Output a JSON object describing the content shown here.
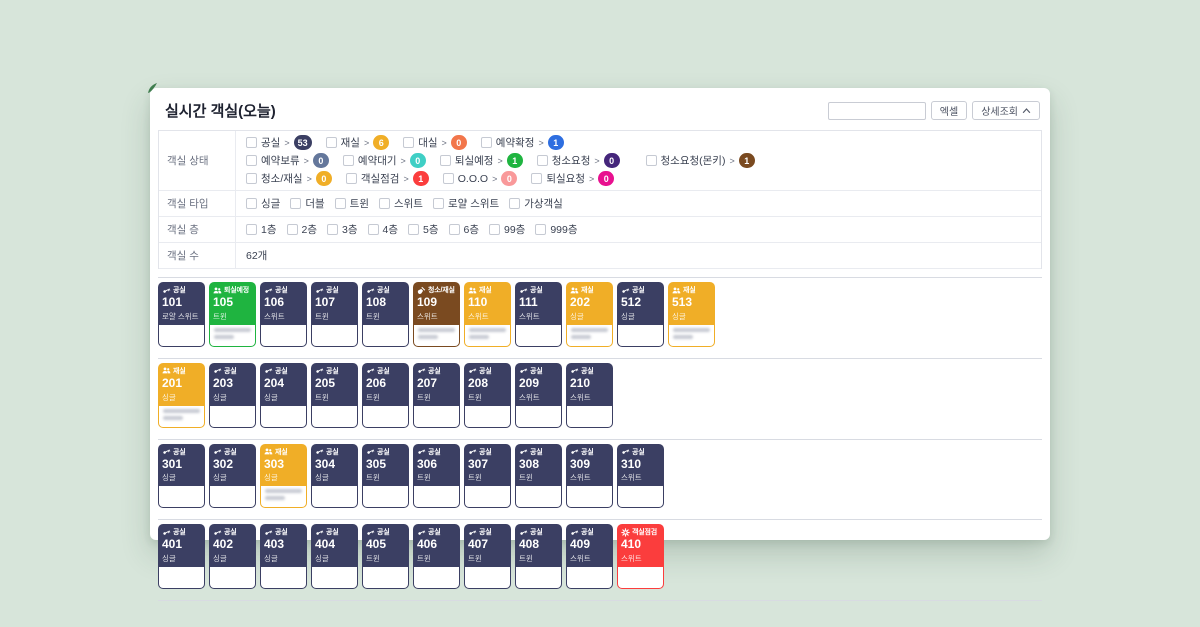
{
  "page": {
    "title": "실시간 객실(오늘)",
    "background_color": "#d7e5da"
  },
  "toolbar": {
    "search_value": "",
    "excel_label": "엑셀",
    "detail_label": "상세조회"
  },
  "filters": {
    "status_label": "객실 상태",
    "type_label": "객실 타입",
    "floor_label": "객실 층",
    "count_label": "객실 수",
    "count_value": "62개",
    "statuses_line1": [
      {
        "label": "공실",
        "count": "53",
        "color": "#3b3f63"
      },
      {
        "label": "재실",
        "count": "6",
        "color": "#f0ae27"
      },
      {
        "label": "대실",
        "count": "0",
        "color": "#f2764b"
      },
      {
        "label": "예약확정",
        "count": "1",
        "color": "#2e6ee0"
      },
      {
        "label": "예약보류",
        "count": "0",
        "color": "#64779b"
      },
      {
        "label": "예약대기",
        "count": "0",
        "color": "#3fcfc5"
      },
      {
        "label": "퇴실예정",
        "count": "1",
        "color": "#1fb440"
      },
      {
        "label": "청소요청",
        "count": "0",
        "color": "#45267b"
      },
      {
        "label": "청소/재실",
        "count": "0",
        "color": "#f0ae27"
      },
      {
        "label": "객실점검",
        "count": "1",
        "color": "#fb3d3d"
      },
      {
        "label": "O.O.O",
        "count": "0",
        "color": "#f9999a"
      },
      {
        "label": "퇴실요청",
        "count": "0",
        "color": "#e8108f"
      }
    ],
    "statuses_line2": [
      {
        "label": "청소요청(몬키)",
        "count": "1",
        "color": "#7a4a20"
      }
    ],
    "types": [
      "싱글",
      "더블",
      "트윈",
      "스위트",
      "로얄 스위트",
      "가상객실"
    ],
    "floors": [
      "1층",
      "2층",
      "3층",
      "4층",
      "5층",
      "6층",
      "99층",
      "999층"
    ]
  },
  "status_styles": {
    "vacant": {
      "label": "공실",
      "color": "#3b3f63",
      "icon": "key-icon"
    },
    "occupied": {
      "label": "재실",
      "color": "#f0ae27",
      "icon": "people-icon"
    },
    "checkout": {
      "label": "퇴실예정",
      "color": "#1fb440",
      "icon": "people-icon"
    },
    "cleaning": {
      "label": "청소/재실",
      "color": "#7a4a20",
      "icon": "broom-icon"
    },
    "inspect": {
      "label": "객실점검",
      "color": "#fb3d3d",
      "icon": "gear-icon"
    }
  },
  "rooms_rows": [
    [
      {
        "number": "101",
        "type": "로얄 스위트",
        "status": "vacant",
        "blurred": false
      },
      {
        "number": "105",
        "type": "트윈",
        "status": "checkout",
        "blurred": true
      },
      {
        "number": "106",
        "type": "스위트",
        "status": "vacant",
        "blurred": false
      },
      {
        "number": "107",
        "type": "트윈",
        "status": "vacant",
        "blurred": false
      },
      {
        "number": "108",
        "type": "트윈",
        "status": "vacant",
        "blurred": false
      },
      {
        "number": "109",
        "type": "스위트",
        "status": "cleaning",
        "blurred": true
      },
      {
        "number": "110",
        "type": "스위트",
        "status": "occupied",
        "blurred": true
      },
      {
        "number": "111",
        "type": "스위트",
        "status": "vacant",
        "blurred": false
      },
      {
        "number": "202",
        "type": "싱글",
        "status": "occupied",
        "blurred": true
      },
      {
        "number": "512",
        "type": "싱글",
        "status": "vacant",
        "blurred": false
      },
      {
        "number": "513",
        "type": "싱글",
        "status": "occupied",
        "blurred": true
      }
    ],
    [
      {
        "number": "201",
        "type": "싱글",
        "status": "occupied",
        "blurred": true
      },
      {
        "number": "203",
        "type": "싱글",
        "status": "vacant",
        "blurred": false
      },
      {
        "number": "204",
        "type": "싱글",
        "status": "vacant",
        "blurred": false
      },
      {
        "number": "205",
        "type": "트윈",
        "status": "vacant",
        "blurred": false
      },
      {
        "number": "206",
        "type": "트윈",
        "status": "vacant",
        "blurred": false
      },
      {
        "number": "207",
        "type": "트윈",
        "status": "vacant",
        "blurred": false
      },
      {
        "number": "208",
        "type": "트윈",
        "status": "vacant",
        "blurred": false
      },
      {
        "number": "209",
        "type": "스위트",
        "status": "vacant",
        "blurred": false
      },
      {
        "number": "210",
        "type": "스위트",
        "status": "vacant",
        "blurred": false
      }
    ],
    [
      {
        "number": "301",
        "type": "싱글",
        "status": "vacant",
        "blurred": false
      },
      {
        "number": "302",
        "type": "싱글",
        "status": "vacant",
        "blurred": false
      },
      {
        "number": "303",
        "type": "싱글",
        "status": "occupied",
        "blurred": true
      },
      {
        "number": "304",
        "type": "싱글",
        "status": "vacant",
        "blurred": false
      },
      {
        "number": "305",
        "type": "트윈",
        "status": "vacant",
        "blurred": false
      },
      {
        "number": "306",
        "type": "트윈",
        "status": "vacant",
        "blurred": false
      },
      {
        "number": "307",
        "type": "트윈",
        "status": "vacant",
        "blurred": false
      },
      {
        "number": "308",
        "type": "트윈",
        "status": "vacant",
        "blurred": false
      },
      {
        "number": "309",
        "type": "스위트",
        "status": "vacant",
        "blurred": false
      },
      {
        "number": "310",
        "type": "스위트",
        "status": "vacant",
        "blurred": false
      }
    ],
    [
      {
        "number": "401",
        "type": "싱글",
        "status": "vacant",
        "blurred": false
      },
      {
        "number": "402",
        "type": "싱글",
        "status": "vacant",
        "blurred": false
      },
      {
        "number": "403",
        "type": "싱글",
        "status": "vacant",
        "blurred": false
      },
      {
        "number": "404",
        "type": "싱글",
        "status": "vacant",
        "blurred": false
      },
      {
        "number": "405",
        "type": "트윈",
        "status": "vacant",
        "blurred": false
      },
      {
        "number": "406",
        "type": "트윈",
        "status": "vacant",
        "blurred": false
      },
      {
        "number": "407",
        "type": "트윈",
        "status": "vacant",
        "blurred": false
      },
      {
        "number": "408",
        "type": "트윈",
        "status": "vacant",
        "blurred": false
      },
      {
        "number": "409",
        "type": "스위트",
        "status": "vacant",
        "blurred": false
      },
      {
        "number": "410",
        "type": "스위트",
        "status": "inspect",
        "blurred": false
      }
    ]
  ]
}
